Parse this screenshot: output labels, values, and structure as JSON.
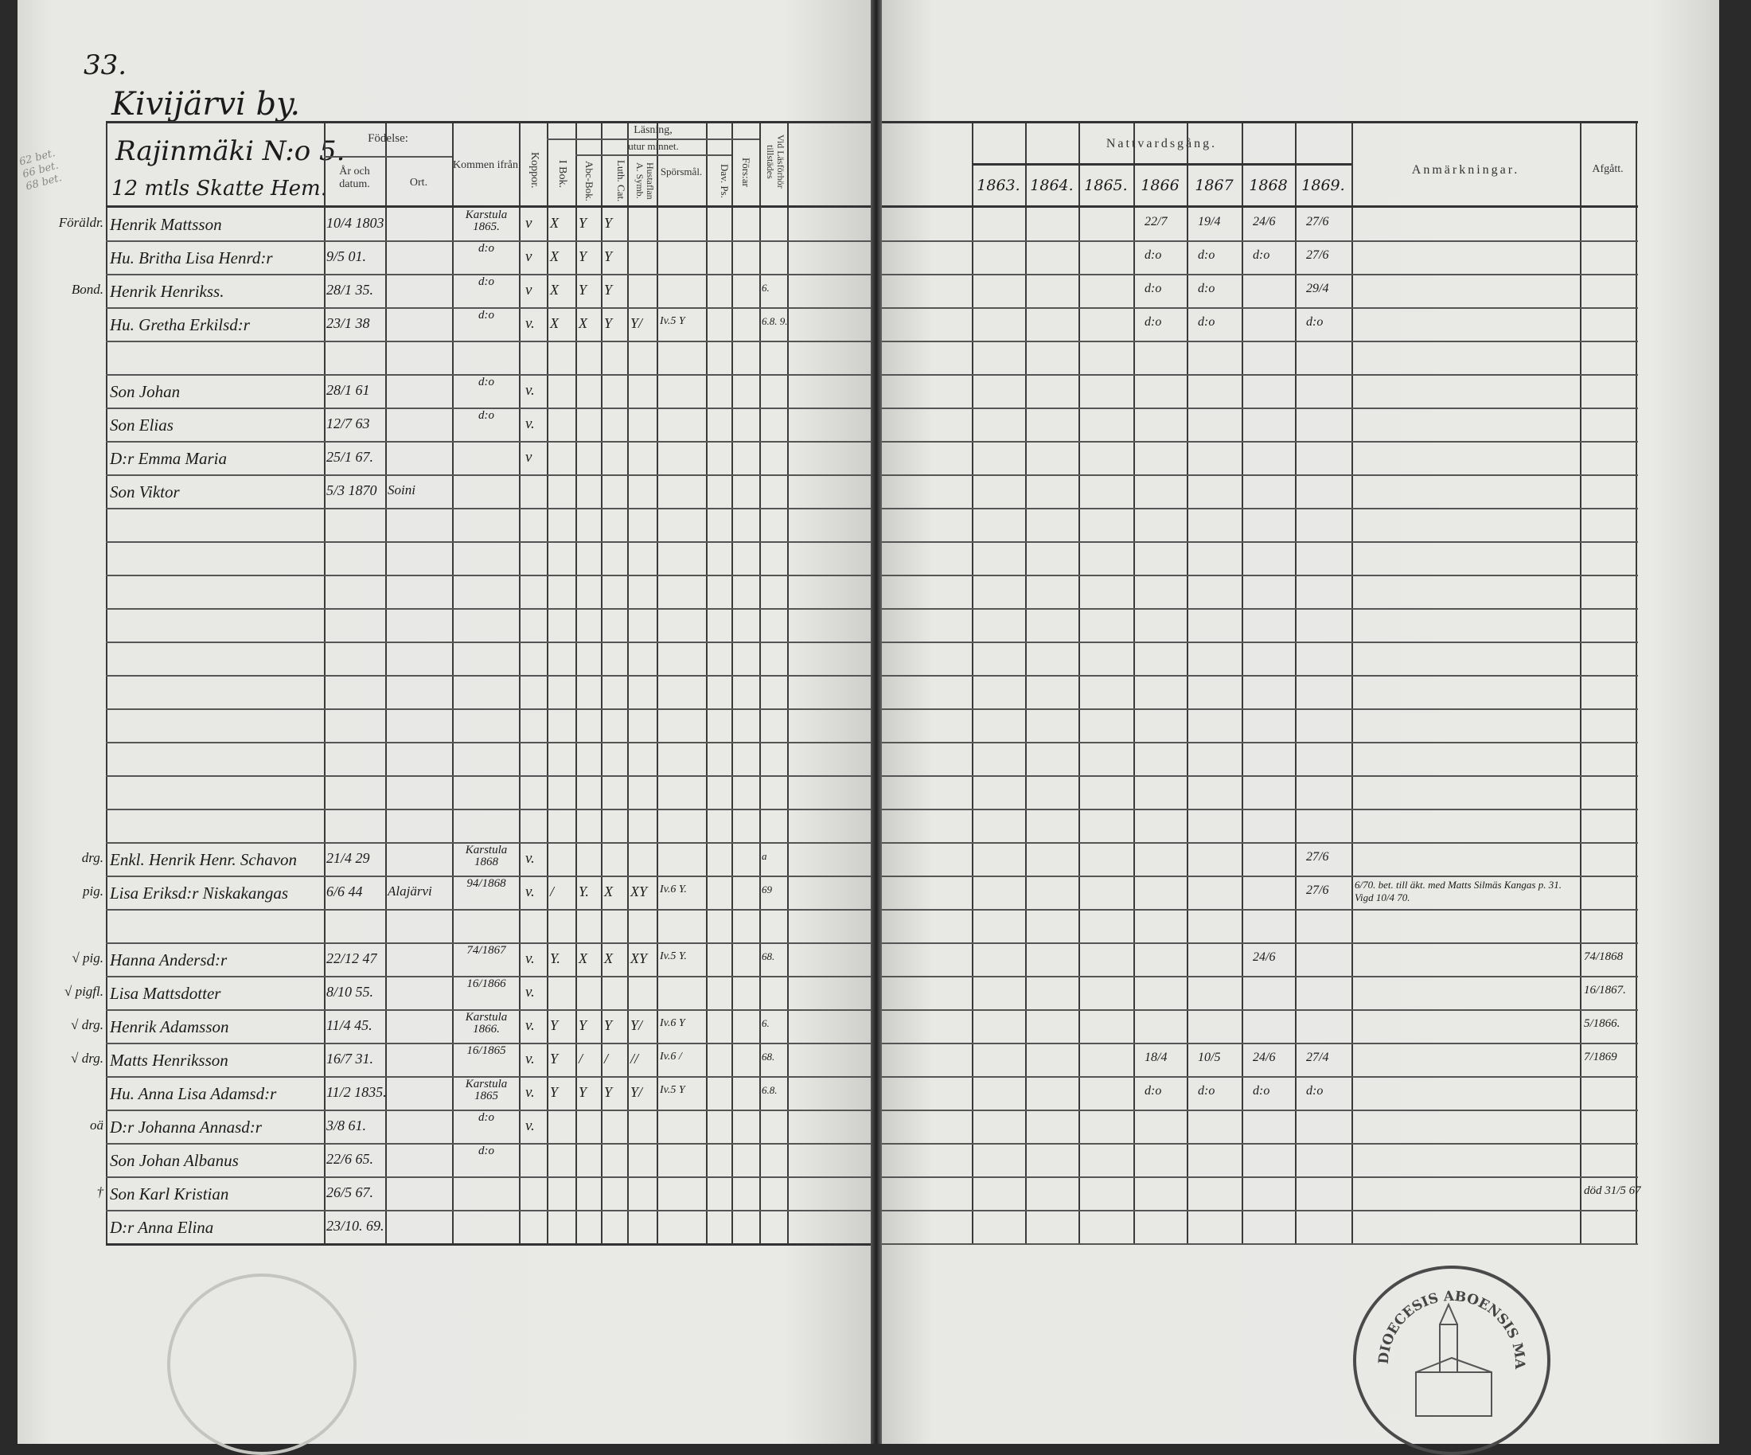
{
  "page_number": "33.",
  "village": "Kivijärvi by.",
  "homestead": "Rajinmäki N:o 5.",
  "homestead_size": "12 mtls Skatte Hem.",
  "margin_pencil": "62 bet. 66 bet. 68 bet.",
  "headers": {
    "birth": "Födelse:",
    "birth_year": "År och datum.",
    "birth_place": "Ort.",
    "came_from": "Kommen ifrån",
    "smallpox": "Koppor.",
    "reading": "Läsning,",
    "by_heart": "utur minnet.",
    "i_bok": "I Bok.",
    "abc_bok": "Abc-Bok.",
    "luth_cat": "Luth. Cat.",
    "hustaflan": "Hustaflan A. Symb.",
    "sporsmal": "Spörsmål.",
    "dav_ps": "Dav. Ps.",
    "forsar": "Förs:ar",
    "lasforhor": "Vid Läsförhör tillstädes",
    "communion": "Nattvardsgång.",
    "years": [
      "1863.",
      "1864.",
      "1865.",
      "1866",
      "1867",
      "1868",
      "1869."
    ],
    "remarks": "Anmärkningar.",
    "departed": "Afgått."
  },
  "rows": [
    {
      "margin": "Föräldr.",
      "name": "Henrik Mattsson",
      "birth": "10/4 1803",
      "ort": "",
      "from": "Karstula 1865.",
      "koppor": "v",
      "reading": [
        "X",
        "Y",
        "Y",
        "",
        "",
        "",
        ""
      ],
      "forhor": "",
      "communion": [
        "",
        "",
        "",
        "22/7",
        "19/4",
        "24/6",
        "27/6"
      ],
      "remarks": "",
      "departed": ""
    },
    {
      "margin": "",
      "name": "Hu. Britha Lisa Henrd:r",
      "birth": "9/5 01.",
      "ort": "",
      "from": "d:o",
      "koppor": "v",
      "reading": [
        "X",
        "Y",
        "Y",
        "",
        "",
        "",
        ""
      ],
      "forhor": "",
      "communion": [
        "",
        "",
        "",
        "d:o",
        "d:o",
        "d:o",
        "27/6"
      ],
      "remarks": "",
      "departed": ""
    },
    {
      "margin": "Bond.",
      "name": "Henrik Henrikss.",
      "birth": "28/1 35.",
      "ort": "",
      "from": "d:o",
      "koppor": "v",
      "reading": [
        "X",
        "Y",
        "Y",
        "",
        "",
        "",
        ""
      ],
      "forhor": "6.",
      "communion": [
        "",
        "",
        "",
        "d:o",
        "d:o",
        "",
        "29/4"
      ],
      "remarks": "",
      "departed": ""
    },
    {
      "margin": "",
      "name": "Hu. Gretha Erkilsd:r",
      "birth": "23/1 38",
      "ort": "",
      "from": "d:o",
      "koppor": "v.",
      "reading": [
        "X",
        "X",
        "Y",
        "Y/",
        "Iv.5 Y",
        "",
        ""
      ],
      "forhor": "6.8. 9.",
      "communion": [
        "",
        "",
        "",
        "d:o",
        "d:o",
        "",
        "d:o"
      ],
      "remarks": "",
      "departed": ""
    },
    {},
    {
      "margin": "",
      "name": "Son Johan",
      "birth": "28/1 61",
      "ort": "",
      "from": "d:o",
      "koppor": "v."
    },
    {
      "margin": "",
      "name": "Son Elias",
      "birth": "12/7 63",
      "ort": "",
      "from": "d:o",
      "koppor": "v."
    },
    {
      "margin": "",
      "name": "D:r Emma Maria",
      "birth": "25/1 67.",
      "ort": "",
      "from": "",
      "koppor": "v"
    },
    {
      "margin": "",
      "name": "Son Viktor",
      "birth": "5/3 1870",
      "ort": "Soini",
      "from": "",
      "koppor": ""
    },
    {},
    {},
    {},
    {},
    {},
    {},
    {},
    {},
    {},
    {},
    {
      "margin": "drg.",
      "name": "Enkl. Henrik Henr. Schavon",
      "birth": "21/4 29",
      "ort": "",
      "from": "Karstula 1868",
      "koppor": "v.",
      "reading": [
        "",
        "",
        "",
        "",
        "",
        "",
        ""
      ],
      "forhor": "a",
      "communion": [
        "",
        "",
        "",
        "",
        "",
        "",
        "27/6"
      ],
      "remarks": "",
      "departed": ""
    },
    {
      "margin": "pig.",
      "name": "Lisa Eriksd:r Niskakangas",
      "birth": "6/6 44",
      "ort": "Alajärvi",
      "from": "94/1868",
      "koppor": "v.",
      "reading": [
        "/",
        "Y.",
        "X",
        "XY",
        "Iv.6 Y.",
        "",
        ""
      ],
      "forhor": "69",
      "communion": [
        "",
        "",
        "",
        "",
        "",
        "",
        "27/6"
      ],
      "remarks": "6/70. bet. till äkt. med Matts Silmäs Kangas p. 31. Vigd 10/4 70.",
      "departed": ""
    },
    {},
    {
      "margin": "√ pig.",
      "name": "Hanna Andersd:r",
      "birth": "22/12 47",
      "ort": "",
      "from": "74/1867",
      "koppor": "v.",
      "reading": [
        "Y.",
        "X",
        "X",
        "XY",
        "Iv.5 Y.",
        "",
        ""
      ],
      "forhor": "68.",
      "communion": [
        "",
        "",
        "",
        "",
        "",
        "24/6",
        ""
      ],
      "remarks": "",
      "departed": "74/1868"
    },
    {
      "margin": "√ pigfl.",
      "name": "Lisa Mattsdotter",
      "birth": "8/10 55.",
      "ort": "",
      "from": "16/1866",
      "koppor": "v.",
      "reading": [
        "",
        "",
        "",
        "",
        "",
        "",
        ""
      ],
      "forhor": "",
      "communion": [
        "",
        "",
        "",
        "",
        "",
        "",
        ""
      ],
      "remarks": "",
      "departed": "16/1867."
    },
    {
      "margin": "√ drg.",
      "name": "Henrik Adamsson",
      "birth": "11/4 45.",
      "ort": "",
      "from": "Karstula 1866.",
      "koppor": "v.",
      "reading": [
        "Y",
        "Y",
        "Y",
        "Y/",
        "Iv.6 Y",
        "",
        ""
      ],
      "forhor": "6.",
      "communion": [
        "",
        "",
        "",
        "",
        "",
        "",
        ""
      ],
      "remarks": "",
      "departed": "5/1866."
    },
    {
      "margin": "√ drg.",
      "name": "Matts Henriksson",
      "birth": "16/7 31.",
      "ort": "",
      "from": "16/1865",
      "koppor": "v.",
      "reading": [
        "Y",
        "/",
        "/",
        "//",
        "Iv.6 /",
        "",
        ""
      ],
      "forhor": "68.",
      "communion": [
        "",
        "",
        "",
        "18/4",
        "10/5",
        "24/6",
        "27/4"
      ],
      "remarks": "",
      "departed": "7/1869"
    },
    {
      "margin": "",
      "name": "Hu. Anna Lisa Adamsd:r",
      "birth": "11/2 1835.",
      "ort": "",
      "from": "Karstula 1865",
      "koppor": "v.",
      "reading": [
        "Y",
        "Y",
        "Y",
        "Y/",
        "Iv.5 Y",
        "",
        ""
      ],
      "forhor": "6.8.",
      "communion": [
        "",
        "",
        "",
        "d:o",
        "d:o",
        "d:o",
        "d:o"
      ],
      "remarks": "",
      "departed": ""
    },
    {
      "margin": "oä",
      "name": "D:r Johanna Annasd:r",
      "birth": "3/8 61.",
      "ort": "",
      "from": "d:o",
      "koppor": "v."
    },
    {
      "margin": "",
      "name": "Son Johan Albanus",
      "birth": "22/6 65.",
      "ort": "",
      "from": "d:o",
      "koppor": ""
    },
    {
      "margin": "†",
      "name": "Son Karl Kristian",
      "birth": "26/5 67.",
      "ort": "",
      "from": "",
      "koppor": "",
      "departed": "död 31/5 67"
    },
    {
      "margin": "",
      "name": "D:r Anna Elina",
      "birth": "23/10. 69.",
      "ort": "",
      "from": "",
      "koppor": ""
    }
  ],
  "stamp": {
    "text": "DIOECESIS ABOENSIS MAGN. PRINC. FINL.",
    "color": "#4a4a4a"
  },
  "colors": {
    "paper": "#e9e9e6",
    "ink": "#1b1b1b",
    "rule": "#3a3a3a"
  }
}
